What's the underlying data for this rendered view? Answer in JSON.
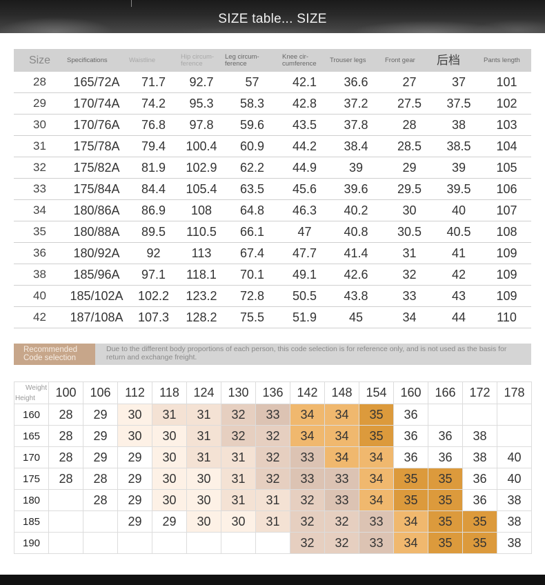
{
  "banner": {
    "title": "SIZE table... SIZE"
  },
  "size_table": {
    "headers": [
      "Size",
      "Specifications",
      "Waistline",
      "Hip circum-ference",
      "Leg circum-ference",
      "Knee cir-cumference",
      "Trouser legs",
      "Front gear",
      "后档",
      "Pants length"
    ],
    "rows": [
      [
        "28",
        "165/72A",
        "71.7",
        "92.7",
        "57",
        "42.1",
        "36.6",
        "27",
        "37",
        "101"
      ],
      [
        "29",
        "170/74A",
        "74.2",
        "95.3",
        "58.3",
        "42.8",
        "37.2",
        "27.5",
        "37.5",
        "102"
      ],
      [
        "30",
        "170/76A",
        "76.8",
        "97.8",
        "59.6",
        "43.5",
        "37.8",
        "28",
        "38",
        "103"
      ],
      [
        "31",
        "175/78A",
        "79.4",
        "100.4",
        "60.9",
        "44.2",
        "38.4",
        "28.5",
        "38.5",
        "104"
      ],
      [
        "32",
        "175/82A",
        "81.9",
        "102.9",
        "62.2",
        "44.9",
        "39",
        "29",
        "39",
        "105"
      ],
      [
        "33",
        "175/84A",
        "84.4",
        "105.4",
        "63.5",
        "45.6",
        "39.6",
        "29.5",
        "39.5",
        "106"
      ],
      [
        "34",
        "180/86A",
        "86.9",
        "108",
        "64.8",
        "46.3",
        "40.2",
        "30",
        "40",
        "107"
      ],
      [
        "35",
        "180/88A",
        "89.5",
        "110.5",
        "66.1",
        "47",
        "40.8",
        "30.5",
        "40.5",
        "108"
      ],
      [
        "36",
        "180/92A",
        "92",
        "113",
        "67.4",
        "47.7",
        "41.4",
        "31",
        "41",
        "109"
      ],
      [
        "38",
        "185/96A",
        "97.1",
        "118.1",
        "70.1",
        "49.1",
        "42.6",
        "32",
        "42",
        "109"
      ],
      [
        "40",
        "185/102A",
        "102.2",
        "123.2",
        "72.8",
        "50.5",
        "43.8",
        "33",
        "43",
        "109"
      ],
      [
        "42",
        "187/108A",
        "107.3",
        "128.2",
        "75.5",
        "51.9",
        "45",
        "34",
        "44",
        "110"
      ]
    ]
  },
  "recommendation": {
    "label": "Recommended Code selection",
    "note": "Due to the different body proportions of each person, this code selection is for reference only, and is not used as the basis for return and exchange freight."
  },
  "weight_height": {
    "corner_weight": "Weight",
    "corner_height": "Height",
    "weights": [
      "100",
      "106",
      "112",
      "118",
      "124",
      "130",
      "136",
      "142",
      "148",
      "154",
      "160",
      "166",
      "172",
      "178"
    ],
    "rows": [
      {
        "height": "160",
        "values": [
          "28",
          "29",
          "30",
          "31",
          "31",
          "32",
          "33",
          "34",
          "34",
          "35",
          "36",
          "",
          "",
          ""
        ]
      },
      {
        "height": "165",
        "values": [
          "28",
          "29",
          "30",
          "30",
          "31",
          "32",
          "32",
          "34",
          "34",
          "35",
          "36",
          "36",
          "38",
          ""
        ]
      },
      {
        "height": "170",
        "values": [
          "28",
          "29",
          "29",
          "30",
          "31",
          "31",
          "32",
          "33",
          "34",
          "34",
          "36",
          "36",
          "38",
          "40"
        ]
      },
      {
        "height": "175",
        "values": [
          "28",
          "28",
          "29",
          "30",
          "30",
          "31",
          "32",
          "33",
          "33",
          "34",
          "35",
          "35",
          "36",
          "40"
        ]
      },
      {
        "height": "180",
        "values": [
          "",
          "28",
          "29",
          "30",
          "30",
          "31",
          "31",
          "32",
          "33",
          "34",
          "35",
          "35",
          "36",
          "38"
        ]
      },
      {
        "height": "185",
        "values": [
          "",
          "",
          "29",
          "29",
          "30",
          "30",
          "31",
          "32",
          "32",
          "33",
          "34",
          "35",
          "35",
          "38"
        ]
      },
      {
        "height": "190",
        "values": [
          "",
          "",
          "",
          "",
          "",
          "",
          "",
          "32",
          "32",
          "33",
          "34",
          "35",
          "35",
          "38"
        ]
      }
    ],
    "size_colors": {
      "28": "#ffffff",
      "29": "#ffffff",
      "30": "#fdf1e6",
      "31": "#f4e2d4",
      "32": "#e6cfc0",
      "33": "#dcc3b3",
      "34": "#f0b86e",
      "35": "#dc9a3c",
      "36": "#ffffff",
      "38": "#ffffff",
      "40": "#ffffff"
    }
  }
}
